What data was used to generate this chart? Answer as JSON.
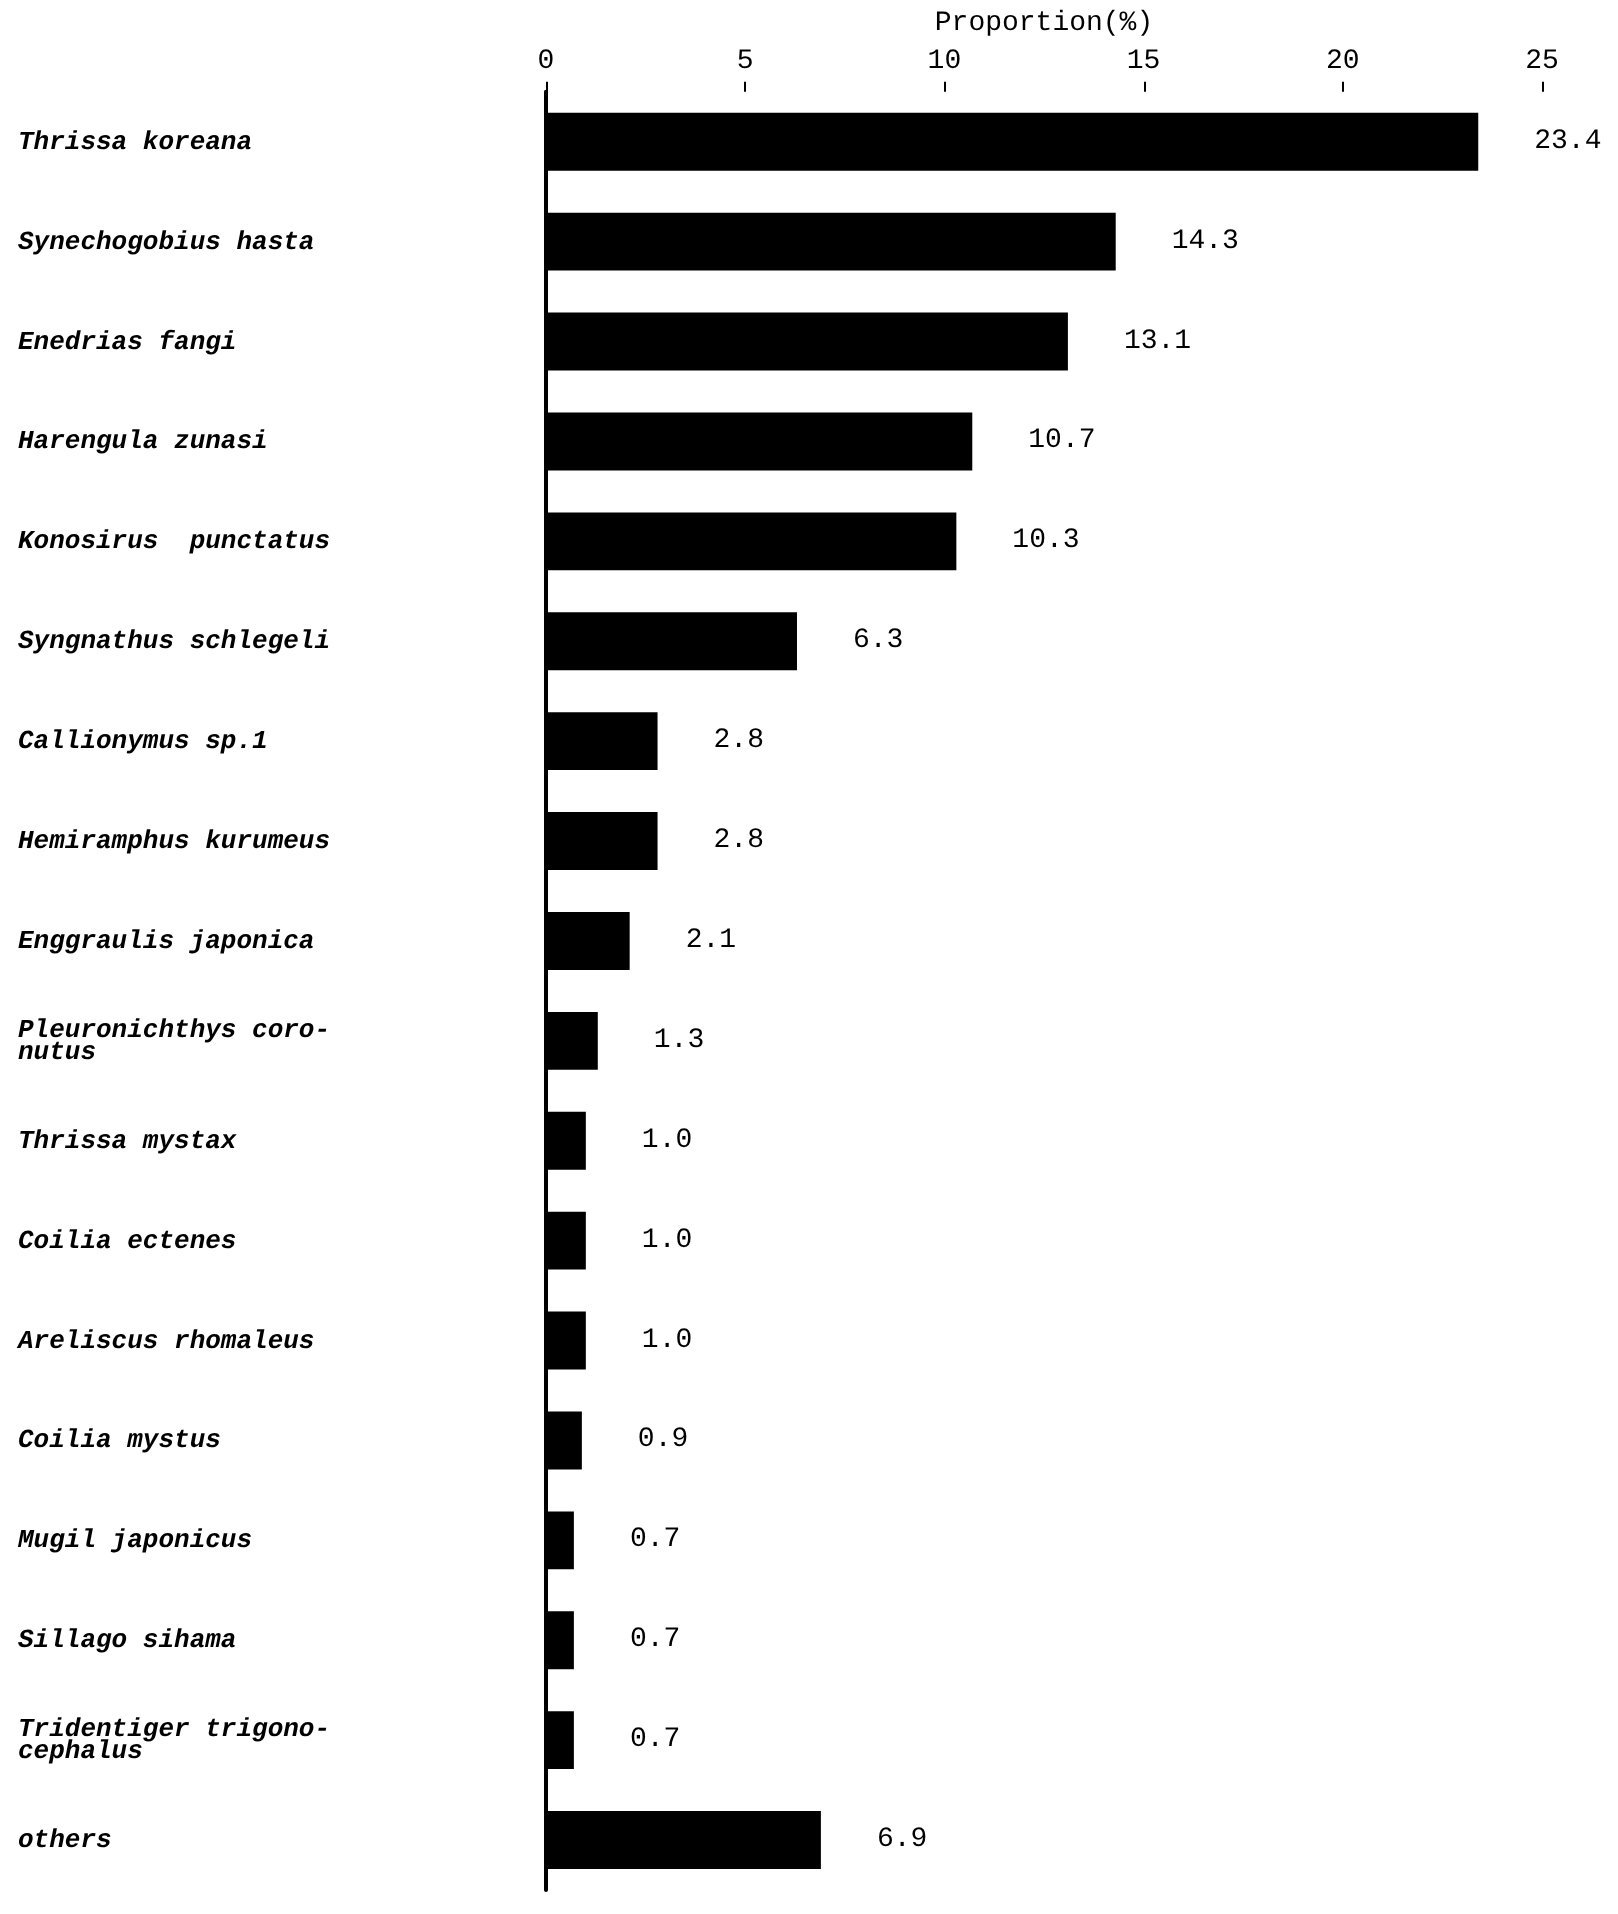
{
  "chart_data": {
    "type": "bar",
    "orientation": "horizontal",
    "xlabel": "Proportion(%)",
    "categories": [
      "Thrissa koreana",
      "Synechogobius hasta",
      "Enedrias fangi",
      "Harengula zunasi",
      "Konosirus  punctatus",
      "Syngnathus schlegeli",
      "Callionymus sp.1",
      "Hemiramphus kurumeus",
      "Enggraulis japonica",
      "Pleuronichthys coro-\nnutus",
      "Thrissa mystax",
      "Coilia ectenes",
      "Areliscus rhomaleus",
      "Coilia mystus",
      "Mugil japonicus",
      "Sillago sihama",
      "Tridentiger trigono-\ncephalus",
      "others"
    ],
    "values": [
      23.4,
      14.3,
      13.1,
      10.7,
      10.3,
      6.3,
      2.8,
      2.8,
      2.1,
      1.3,
      1.0,
      1.0,
      1.0,
      0.9,
      0.7,
      0.7,
      0.7,
      6.9
    ],
    "value_labels": [
      "23.4",
      "14.3",
      "13.1",
      "10.7",
      "10.3",
      "6.3",
      "2.8",
      "2.8",
      "2.1",
      "1.3",
      "1.0",
      "1.0",
      "1.0",
      "0.9",
      "0.7",
      "0.7",
      "0.7",
      "6.9"
    ],
    "color": "#000000",
    "xlim": [
      0,
      25
    ],
    "xticks": [
      0,
      5,
      10,
      15,
      20,
      25
    ],
    "grid": false
  }
}
